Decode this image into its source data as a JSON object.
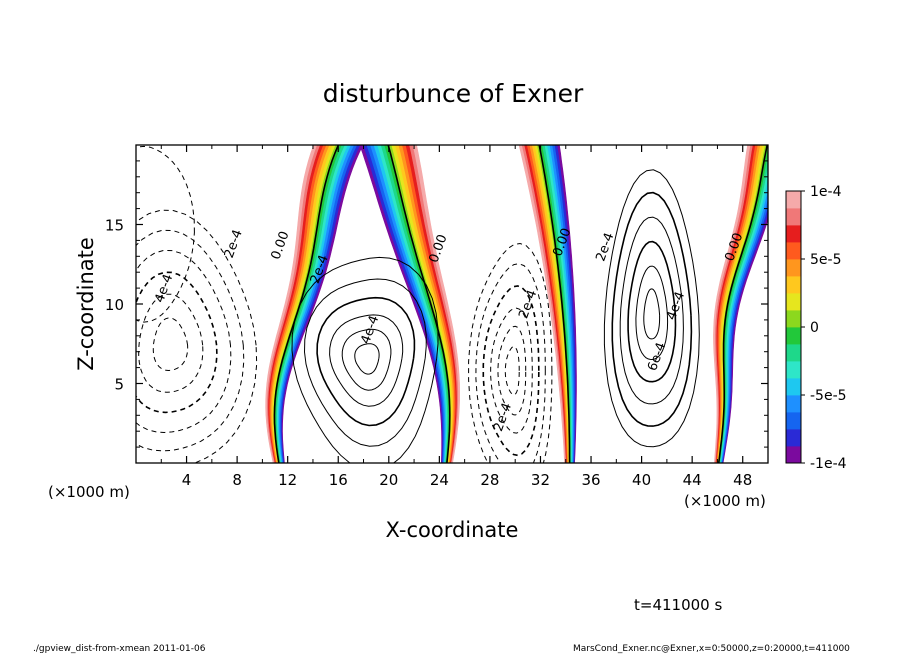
{
  "chart_data": {
    "type": "heatmap",
    "title": "disturbunce of Exner",
    "xlabel": "X-coordinate",
    "ylabel": "Z-coordinate",
    "x_unit": "(×1000 m)",
    "x_unit_right": "(×1000 m)",
    "xlim": [
      0,
      50
    ],
    "ylim": [
      0,
      20
    ],
    "x_ticks": [
      4,
      8,
      12,
      16,
      20,
      24,
      28,
      32,
      36,
      40,
      44,
      48
    ],
    "y_ticks": [
      5,
      10,
      15
    ],
    "colorbar": {
      "range": [
        -0.0001,
        0.0001
      ],
      "tick_labels": [
        "1e-4",
        "5e-5",
        "0",
        "-5e-5",
        "-1e-4"
      ],
      "tick_values": [
        0.0001,
        5e-05,
        0,
        -5e-05,
        -0.0001
      ],
      "colors": [
        "#7b0a9e",
        "#2a2ad6",
        "#1565f0",
        "#1e90ff",
        "#1ec8f0",
        "#2ee6c8",
        "#1ed88a",
        "#22c83a",
        "#8cd81e",
        "#e6e61e",
        "#ffc81e",
        "#ff961e",
        "#ff5a1e",
        "#e61e1e",
        "#f07878",
        "#f5aaaa"
      ]
    },
    "contour_labels": [
      {
        "text": "4e-4",
        "x": 2.5,
        "y": 10.9
      },
      {
        "text": "2e-4",
        "x": 8.0,
        "y": 13.7
      },
      {
        "text": "0.00",
        "x": 11.7,
        "y": 13.6
      },
      {
        "text": "2e-4",
        "x": 14.8,
        "y": 12.1
      },
      {
        "text": "4e-4",
        "x": 18.8,
        "y": 8.3
      },
      {
        "text": "0.00",
        "x": 24.2,
        "y": 13.4
      },
      {
        "text": "2e-4",
        "x": 31.3,
        "y": 9.9
      },
      {
        "text": "2e-4",
        "x": 29.3,
        "y": 2.8
      },
      {
        "text": "0.00",
        "x": 34.0,
        "y": 13.8
      },
      {
        "text": "2e-4",
        "x": 37.4,
        "y": 13.5
      },
      {
        "text": "4e-4",
        "x": 43.0,
        "y": 9.8
      },
      {
        "text": "6e-4",
        "x": 41.5,
        "y": 6.6
      },
      {
        "text": "0.00",
        "x": 47.6,
        "y": 13.5
      }
    ],
    "grid": false
  },
  "annotations": {
    "time": "t=411000 s",
    "footer_left": "./gpview_dist-from-xmean  2011-01-06",
    "footer_right": "MarsCond_Exner.nc@Exner,x=0:50000,z=0:20000,t=411000"
  }
}
